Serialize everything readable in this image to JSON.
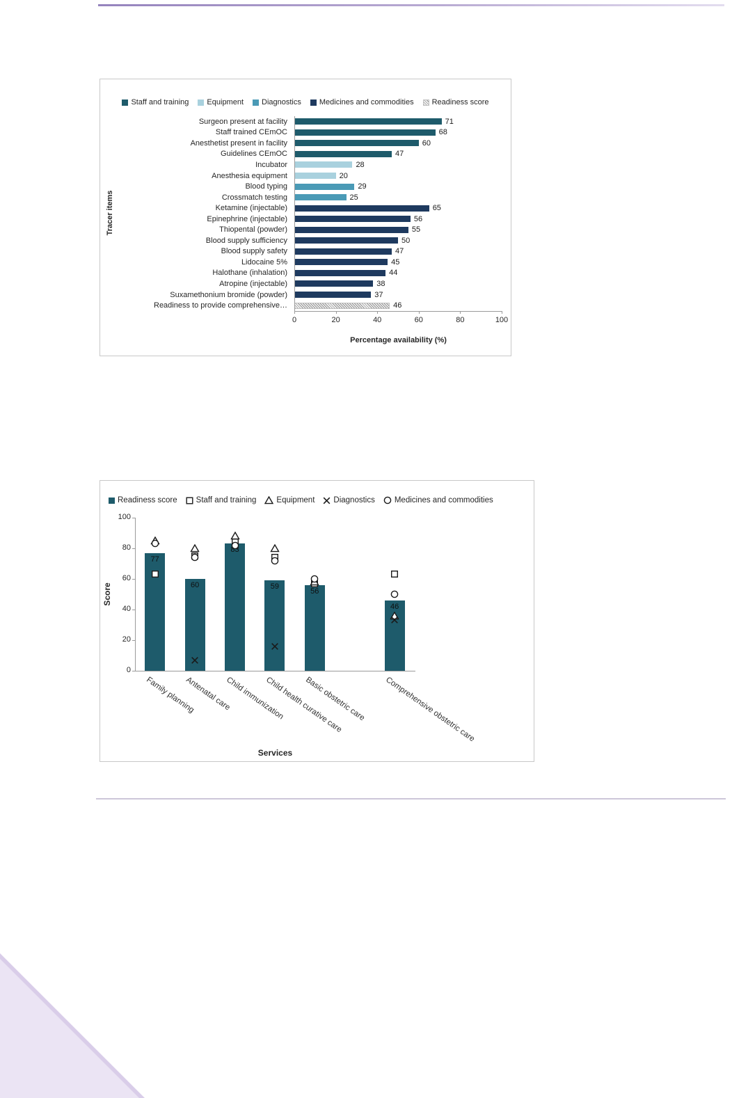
{
  "page": {
    "background": "#ffffff",
    "top_rule_colors": [
      "#9583bd",
      "#e3ddef"
    ],
    "divider_color": "#cdc6d9",
    "corner_triangle_color": "#ebe4f4",
    "corner_edge_color": "#d9cde9"
  },
  "chart_data": [
    {
      "type": "bar",
      "orientation": "horizontal",
      "title": "",
      "xlabel": "Percentage availability (%)",
      "ylabel": "Tracer items",
      "xlim": [
        0,
        100
      ],
      "xticks": [
        0,
        20,
        40,
        60,
        80,
        100
      ],
      "grid": false,
      "legend_position": "top",
      "legend": [
        {
          "label": "Staff and training",
          "color": "#1e5b6b"
        },
        {
          "label": "Equipment",
          "color": "#a9d1de"
        },
        {
          "label": "Diagnostics",
          "color": "#4a9ab6"
        },
        {
          "label": "Medicines and commodities",
          "color": "#1e3a5f"
        },
        {
          "label": "Readiness score",
          "color": "hatch"
        }
      ],
      "bars": [
        {
          "label": "Surgeon present at facility",
          "value": 71,
          "series": "Staff and training"
        },
        {
          "label": "Staff trained CEmOC",
          "value": 68,
          "series": "Staff and training"
        },
        {
          "label": "Anesthetist present in facility",
          "value": 60,
          "series": "Staff and training"
        },
        {
          "label": "Guidelines CEmOC",
          "value": 47,
          "series": "Staff and training"
        },
        {
          "label": "Incubator",
          "value": 28,
          "series": "Equipment"
        },
        {
          "label": "Anesthesia equipment",
          "value": 20,
          "series": "Equipment"
        },
        {
          "label": "Blood typing",
          "value": 29,
          "series": "Diagnostics"
        },
        {
          "label": "Crossmatch testing",
          "value": 25,
          "series": "Diagnostics"
        },
        {
          "label": "Ketamine (injectable)",
          "value": 65,
          "series": "Medicines and commodities"
        },
        {
          "label": "Epinephrine (injectable)",
          "value": 56,
          "series": "Medicines and commodities"
        },
        {
          "label": "Thiopental (powder)",
          "value": 55,
          "series": "Medicines and commodities"
        },
        {
          "label": "Blood supply sufficiency",
          "value": 50,
          "series": "Medicines and commodities"
        },
        {
          "label": "Blood supply safety",
          "value": 47,
          "series": "Medicines and commodities"
        },
        {
          "label": "Lidocaine 5%",
          "value": 45,
          "series": "Medicines and commodities"
        },
        {
          "label": "Halothane (inhalation)",
          "value": 44,
          "series": "Medicines and commodities"
        },
        {
          "label": "Atropine (injectable)",
          "value": 38,
          "series": "Medicines and commodities"
        },
        {
          "label": "Suxamethonium bromide (powder)",
          "value": 37,
          "series": "Medicines and commodities"
        },
        {
          "label": "Readiness to provide comprehensive…",
          "value": 46,
          "series": "Readiness score"
        }
      ]
    },
    {
      "type": "combo",
      "title": "",
      "xlabel": "Services",
      "ylabel": "Score",
      "ylim": [
        0,
        100
      ],
      "yticks": [
        0,
        20,
        40,
        60,
        80,
        100
      ],
      "grid": false,
      "legend_position": "top",
      "categories": [
        "Family planning",
        "Antenatal care",
        "Child immunization",
        "Child health curative care",
        "Basic obstetric care",
        "Comprehensive obstetric care"
      ],
      "slot_of_category": [
        0,
        1,
        2,
        3,
        4,
        6
      ],
      "n_slots": 7,
      "legend": [
        {
          "label": "Readiness score",
          "marker": "bar",
          "color": "#1e5b6b"
        },
        {
          "label": "Staff and training",
          "marker": "square"
        },
        {
          "label": "Equipment",
          "marker": "triangle"
        },
        {
          "label": "Diagnostics",
          "marker": "x"
        },
        {
          "label": "Medicines and commodities",
          "marker": "circle"
        }
      ],
      "bar_series": {
        "name": "Readiness score",
        "color": "#1e5b6b",
        "values": [
          77,
          60,
          83,
          59,
          56,
          46
        ]
      },
      "marker_series": [
        {
          "name": "Staff and training",
          "marker": "square",
          "values": [
            63,
            75,
            84,
            74,
            57,
            63
          ]
        },
        {
          "name": "Equipment",
          "marker": "triangle",
          "values": [
            85,
            80,
            88,
            80,
            58,
            36
          ]
        },
        {
          "name": "Diagnostics",
          "marker": "x",
          "values": [
            null,
            7,
            null,
            16,
            null,
            33
          ]
        },
        {
          "name": "Medicines and commodities",
          "marker": "circle",
          "values": [
            83,
            74,
            82,
            72,
            60,
            50
          ]
        }
      ]
    }
  ]
}
